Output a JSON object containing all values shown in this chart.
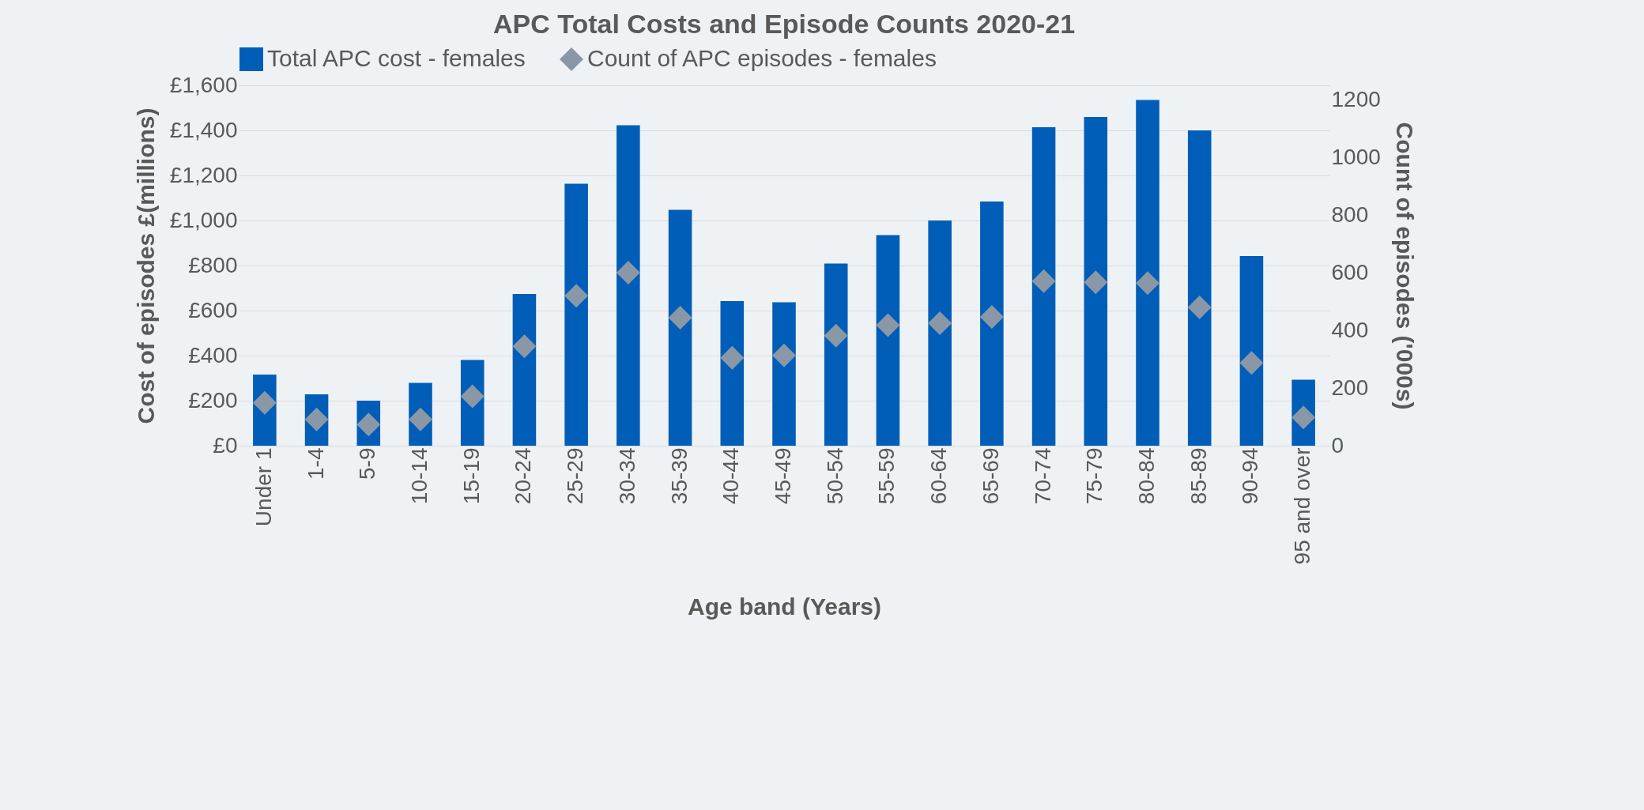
{
  "chart_data": {
    "type": "bar",
    "title": "APC Total Costs and Episode Counts 2020-21",
    "xlabel": "Age band (Years)",
    "ylabel": "Cost of episodes £(millions)",
    "y2label": "Count of episodes ('000s)",
    "categories": [
      "Under 1",
      "1-4",
      "5-9",
      "10-14",
      "15-19",
      "20-24",
      "25-29",
      "30-34",
      "35-39",
      "40-44",
      "45-49",
      "50-54",
      "55-59",
      "60-64",
      "65-69",
      "70-74",
      "75-79",
      "80-84",
      "85-89",
      "90-94",
      "95 and over"
    ],
    "series": [
      {
        "name": "Total APC cost - females",
        "color": "#005eb8",
        "values": [
          316,
          228,
          200,
          279,
          381,
          674,
          1163,
          1423,
          1047,
          642,
          637,
          809,
          935,
          1000,
          1084,
          1414,
          1460,
          1535,
          1400,
          842,
          293
        ]
      },
      {
        "name": "Count of APC episodes - females",
        "type": "scatter",
        "axis": "y2",
        "color": "#8a97a6",
        "values": [
          149,
          91,
          73,
          91,
          171,
          345,
          520,
          600,
          444,
          305,
          313,
          382,
          418,
          425,
          447,
          571,
          567,
          564,
          480,
          287,
          98
        ]
      }
    ],
    "ylim": [
      0,
      1600
    ],
    "yticks": [
      {
        "value": 0,
        "label": "£0"
      },
      {
        "value": 200,
        "label": "£200"
      },
      {
        "value": 400,
        "label": "£400"
      },
      {
        "value": 600,
        "label": "£600"
      },
      {
        "value": 800,
        "label": "£800"
      },
      {
        "value": 1000,
        "label": "£1,000"
      },
      {
        "value": 1200,
        "label": "£1,200"
      },
      {
        "value": 1400,
        "label": "£1,400"
      },
      {
        "value": 1600,
        "label": "£1,600"
      }
    ],
    "y2lim": [
      0,
      1250
    ],
    "y2ticks": [
      0,
      200,
      400,
      600,
      800,
      1000,
      1200
    ],
    "grid": "y",
    "legend": "top",
    "marker": "diamond"
  }
}
